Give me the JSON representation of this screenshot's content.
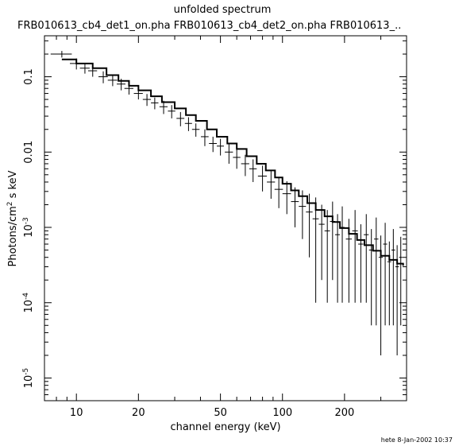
{
  "chart_data": {
    "type": "scatter",
    "title": "unfolded spectrum",
    "subtitle": "FRB010613_cb4_det1_on.pha  FRB010613_cb4_det2_on.pha  FRB010613_..",
    "xlabel": "channel energy (keV)",
    "ylabel": {
      "base": "Photons/cm",
      "sup": "2",
      "rest": " s keV"
    },
    "x_scale": "log",
    "y_scale": "log",
    "xlim": [
      7.0,
      400
    ],
    "ylim": [
      5e-06,
      0.35
    ],
    "x_ticks": [
      10,
      20,
      50,
      100,
      200
    ],
    "x_tick_labels": [
      "10",
      "20",
      "50",
      "100",
      "200"
    ],
    "y_ticks": [
      0.1,
      0.01,
      0.001,
      0.0001,
      1e-05
    ],
    "y_tick_labels": [
      {
        "text": "0.1"
      },
      {
        "text": "0.01"
      },
      {
        "base": "10",
        "sup": "-3"
      },
      {
        "base": "10",
        "sup": "-4"
      },
      {
        "base": "10",
        "sup": "-5"
      }
    ],
    "grid": false,
    "series": [
      {
        "points": [
          [
            8.5,
            0.2,
            1.0,
            0.02
          ],
          [
            10.0,
            0.15,
            0.7,
            0.025
          ],
          [
            11.0,
            0.13,
            0.6,
            0.02
          ],
          [
            12.0,
            0.12,
            0.6,
            0.02
          ],
          [
            13.5,
            0.1,
            0.7,
            0.018
          ],
          [
            15.0,
            0.09,
            0.8,
            0.015
          ],
          [
            16.5,
            0.08,
            0.8,
            0.014
          ],
          [
            18.0,
            0.07,
            0.9,
            0.012
          ],
          [
            20.0,
            0.06,
            1.0,
            0.01
          ],
          [
            22.0,
            0.05,
            1.0,
            0.009
          ],
          [
            24.0,
            0.045,
            1.0,
            0.008
          ],
          [
            26.5,
            0.04,
            1.2,
            0.008
          ],
          [
            29.0,
            0.035,
            1.2,
            0.007
          ],
          [
            32.0,
            0.028,
            1.4,
            0.006
          ],
          [
            35.0,
            0.024,
            1.4,
            0.005
          ],
          [
            38.0,
            0.02,
            1.6,
            0.004
          ],
          [
            42.0,
            0.016,
            1.8,
            0.004
          ],
          [
            46.0,
            0.013,
            2.0,
            0.003
          ],
          [
            50.0,
            0.012,
            2.0,
            0.003
          ],
          [
            55.0,
            0.01,
            2.5,
            0.003
          ],
          [
            60.0,
            0.0085,
            2.5,
            0.0025
          ],
          [
            66.0,
            0.007,
            3.0,
            0.0022
          ],
          [
            72.0,
            0.006,
            3.0,
            0.002
          ],
          [
            80.0,
            0.0048,
            4.0,
            0.0018
          ],
          [
            88.0,
            0.004,
            4.0,
            0.0016
          ],
          [
            96.0,
            0.0032,
            4.5,
            0.0014
          ],
          [
            105.0,
            0.0028,
            5.0,
            0.0013
          ],
          [
            115.0,
            0.0022,
            5.0,
            0.0012
          ],
          [
            125.0,
            0.0019,
            5.0,
            0.0012
          ],
          [
            135.0,
            0.0016,
            5.0,
            0.0012
          ],
          [
            145.0,
            0.0013,
            5.0,
            0.0012
          ],
          [
            155.0,
            0.0011,
            5.0,
            0.0009
          ],
          [
            165.0,
            0.0009,
            5.0,
            0.0008
          ],
          [
            175.0,
            0.0012,
            5.0,
            0.001
          ],
          [
            185.0,
            0.0008,
            5.0,
            0.0007
          ],
          [
            195.0,
            0.001,
            5.0,
            0.0009
          ],
          [
            210.0,
            0.0007,
            7.0,
            0.0006
          ],
          [
            225.0,
            0.0009,
            7.0,
            0.0008
          ],
          [
            240.0,
            0.0006,
            7.0,
            0.0005
          ],
          [
            255.0,
            0.0008,
            7.0,
            0.0007
          ],
          [
            270.0,
            0.0005,
            7.0,
            0.00045
          ],
          [
            285.0,
            0.0007,
            7.0,
            0.00065
          ],
          [
            300.0,
            0.0004,
            7.0,
            0.00038
          ],
          [
            315.0,
            0.0006,
            7.0,
            0.00055
          ],
          [
            330.0,
            0.00035,
            7.0,
            0.0003
          ],
          [
            345.0,
            0.0005,
            7.0,
            0.00045
          ],
          [
            360.0,
            0.0003,
            7.0,
            0.00028
          ],
          [
            375.0,
            0.0004,
            7.0,
            0.00035
          ]
        ]
      },
      {
        "model": [
          [
            8.5,
            0.17
          ],
          [
            10,
            0.15
          ],
          [
            12,
            0.13
          ],
          [
            14,
            0.105
          ],
          [
            16,
            0.088
          ],
          [
            18,
            0.076
          ],
          [
            20,
            0.066
          ],
          [
            23,
            0.055
          ],
          [
            26,
            0.046
          ],
          [
            30,
            0.038
          ],
          [
            34,
            0.031
          ],
          [
            38,
            0.026
          ],
          [
            43,
            0.02
          ],
          [
            48,
            0.016
          ],
          [
            54,
            0.013
          ],
          [
            60,
            0.011
          ],
          [
            67,
            0.0088
          ],
          [
            75,
            0.007
          ],
          [
            83,
            0.0057
          ],
          [
            92,
            0.0046
          ],
          [
            100,
            0.0038
          ],
          [
            110,
            0.0031
          ],
          [
            120,
            0.0026
          ],
          [
            132,
            0.0021
          ],
          [
            145,
            0.0017
          ],
          [
            160,
            0.0014
          ],
          [
            175,
            0.00118
          ],
          [
            190,
            0.00098
          ],
          [
            210,
            0.00082
          ],
          [
            230,
            0.00068
          ],
          [
            250,
            0.00058
          ],
          [
            275,
            0.00049
          ],
          [
            300,
            0.00042
          ],
          [
            330,
            0.00037
          ],
          [
            360,
            0.00033
          ],
          [
            385,
            0.00031
          ]
        ]
      }
    ]
  },
  "footer": "hete  8-Jan-2002 10:37"
}
